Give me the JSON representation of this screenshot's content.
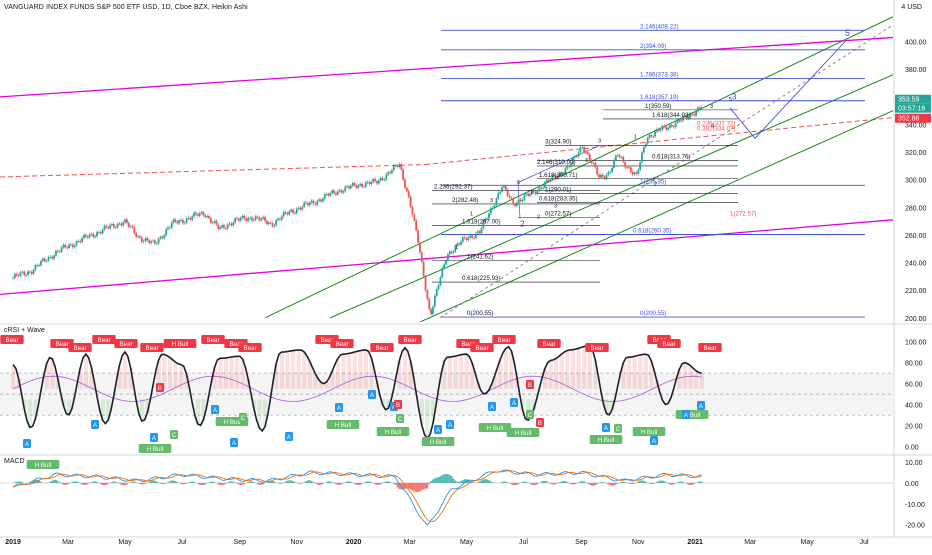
{
  "header": {
    "symbol_title": "VANGUARD INDEX FUNDS S&P 500 ETF USD, 1D, Cboe BZX, Heikin Ashi",
    "currency": "4 USD"
  },
  "panes": {
    "crsi_title": "cRSI + Wave",
    "macd_title": "MACD"
  },
  "colors": {
    "up": "#26a69a",
    "down": "#ef5350",
    "magenta": "#e600e6",
    "green_channel": "#1b8a1b",
    "fib_blue": "#3f51d8",
    "crsi_line": "#1c1f2a",
    "bear_badge": "#f23645",
    "bull_badge": "#66bb6a",
    "a_badge": "#2196f3",
    "macd_line": "#2196f3",
    "signal_line": "#ff6d00"
  },
  "chart_data": [
    {
      "type": "line",
      "title": "VANGUARD INDEX FUNDS S&P 500 ETF USD, 1D, Cboe BZX, Heikin Ashi",
      "ylim": [
        197,
        420
      ],
      "y_ticks": [
        "400.00",
        "380.00",
        "360.00",
        "340.00",
        "320.00",
        "300.00",
        "280.00",
        "260.00",
        "240.00",
        "220.00",
        "200.00"
      ],
      "x_ticks": [
        "2019",
        "Mar",
        "May",
        "Jul",
        "Sep",
        "Nov",
        "2020",
        "Mar",
        "May",
        "Jul",
        "Sep",
        "Nov",
        "2021",
        "Mar",
        "May",
        "Jul"
      ],
      "series": [
        {
          "name": "price",
          "x": [
            "2019-01-01",
            "2019-01-20",
            "2019-02-15",
            "2019-03-10",
            "2019-04-05",
            "2019-04-30",
            "2019-05-15",
            "2019-06-01",
            "2019-06-20",
            "2019-07-25",
            "2019-08-10",
            "2019-08-25",
            "2019-09-15",
            "2019-10-05",
            "2019-10-25",
            "2019-11-20",
            "2019-12-15",
            "2020-01-10",
            "2020-01-25",
            "2020-02-19",
            "2020-03-01",
            "2020-03-10",
            "2020-03-23",
            "2020-04-10",
            "2020-05-01",
            "2020-05-15",
            "2020-06-08",
            "2020-06-20",
            "2020-07-10",
            "2020-07-30",
            "2020-08-20",
            "2020-09-02",
            "2020-09-20",
            "2020-10-01",
            "2020-10-10",
            "2020-10-30",
            "2020-11-10",
            "2020-12-01",
            "2020-12-20",
            "2021-01-08"
          ],
          "values": [
            229,
            234,
            247,
            255,
            263,
            270,
            259,
            253,
            268,
            276,
            264,
            270,
            273,
            268,
            277,
            284,
            292,
            297,
            298,
            311,
            285,
            255,
            202,
            246,
            258,
            262,
            295,
            283,
            290,
            300,
            310,
            325,
            302,
            305,
            318,
            302,
            331,
            338,
            344,
            353
          ]
        }
      ],
      "annotations": [
        "2.146(408.22)",
        "2(394.09)",
        "1.786(373.38)",
        "1.618(357.19)",
        "1(350.59)",
        "1.618(344.03)",
        "0.236(337.72)",
        "0.382(334.07)",
        "0.618(313.76)",
        "1(295.95)",
        "0(272.57)",
        "1(272.57)",
        "0.618(260.35)",
        "0(200.55)",
        "0(200.55)",
        "3(324.90)",
        "2.146(310.00)",
        "1.618(300.71)",
        "1(290.01)",
        "0.618(283.35)",
        "2.236(292.37)",
        "2(282.48)",
        "1.618(267.00)",
        "1(241.62)",
        "0.618(225.93)",
        "0(272.57)",
        "5",
        "3",
        "2",
        "1",
        "4"
      ],
      "price_badges": [
        "353.59",
        "03:57:16",
        "352.86"
      ]
    },
    {
      "type": "line",
      "title": "cRSI + Wave",
      "ylim": [
        -5,
        110
      ],
      "y_ticks": [
        "100.00",
        "80.00",
        "60.00",
        "40.00",
        "20.00",
        "0.00"
      ],
      "series": [
        {
          "name": "crsi",
          "x": [
            "2019-01-01",
            "2019-01-20",
            "2019-02-10",
            "2019-03-01",
            "2019-03-20",
            "2019-04-10",
            "2019-05-01",
            "2019-05-20",
            "2019-06-10",
            "2019-07-01",
            "2019-07-20",
            "2019-08-10",
            "2019-09-01",
            "2019-09-25",
            "2019-10-15",
            "2019-11-05",
            "2019-11-30",
            "2019-12-20",
            "2020-01-15",
            "2020-02-05",
            "2020-02-25",
            "2020-03-20",
            "2020-04-10",
            "2020-05-01",
            "2020-05-20",
            "2020-06-15",
            "2020-07-05",
            "2020-07-30",
            "2020-08-20",
            "2020-09-10",
            "2020-09-30",
            "2020-10-20",
            "2020-11-10",
            "2020-12-01",
            "2020-12-20",
            "2021-01-08"
          ],
          "values": [
            78,
            18,
            85,
            30,
            88,
            22,
            90,
            24,
            88,
            78,
            20,
            84,
            86,
            15,
            90,
            92,
            60,
            88,
            92,
            35,
            94,
            8,
            85,
            88,
            50,
            95,
            25,
            82,
            92,
            96,
            30,
            85,
            88,
            40,
            80,
            70
          ]
        }
      ],
      "badges": [
        "Bear",
        "H Bull",
        "A",
        "C",
        "B"
      ]
    },
    {
      "type": "bar",
      "title": "MACD",
      "ylim": [
        -24,
        11
      ],
      "y_ticks": [
        "10.00",
        "0.00",
        "-10.00",
        "-20.00"
      ],
      "series": [
        {
          "name": "macd",
          "x": [
            "2019-01-01",
            "2019-02-15",
            "2019-04-01",
            "2019-05-15",
            "2019-07-01",
            "2019-08-15",
            "2019-10-01",
            "2019-11-15",
            "2020-01-01",
            "2020-02-15",
            "2020-03-20",
            "2020-04-15",
            "2020-06-01",
            "2020-07-15",
            "2020-09-01",
            "2020-10-15",
            "2020-12-01",
            "2021-01-08"
          ],
          "values": [
            -2,
            4,
            3,
            1,
            4,
            2,
            1,
            5,
            4,
            3,
            -21,
            -3,
            6,
            4,
            5,
            1,
            4,
            3
          ]
        }
      ]
    }
  ]
}
